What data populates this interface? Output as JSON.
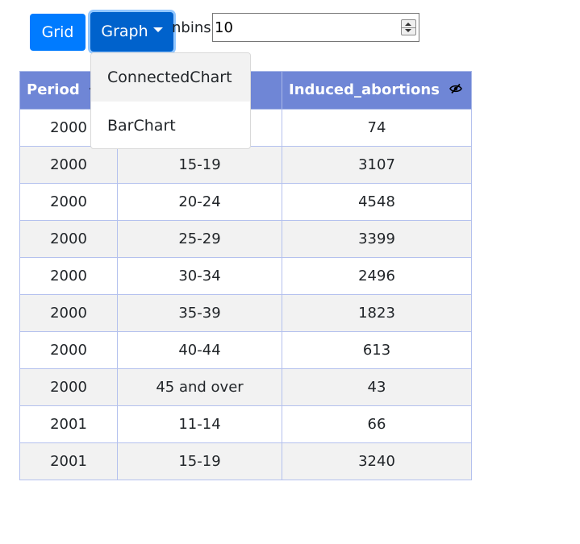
{
  "toolbar": {
    "grid_label": "Grid",
    "graph_label": "Graph",
    "nbins_label": "nbins",
    "nbins_value": "10"
  },
  "dropdown": {
    "items": [
      {
        "label": "ConnectedChart"
      },
      {
        "label": "BarChart"
      }
    ]
  },
  "table": {
    "headers": {
      "period": "Period",
      "induced": "Induced_abortions"
    },
    "rows": [
      {
        "period": "2000",
        "age": "",
        "induced": "74"
      },
      {
        "period": "2000",
        "age": "15-19",
        "induced": "3107"
      },
      {
        "period": "2000",
        "age": "20-24",
        "induced": "4548"
      },
      {
        "period": "2000",
        "age": "25-29",
        "induced": "3399"
      },
      {
        "period": "2000",
        "age": "30-34",
        "induced": "2496"
      },
      {
        "period": "2000",
        "age": "35-39",
        "induced": "1823"
      },
      {
        "period": "2000",
        "age": "40-44",
        "induced": "613"
      },
      {
        "period": "2000",
        "age": "45 and over",
        "induced": "43"
      },
      {
        "period": "2001",
        "age": "11-14",
        "induced": "66"
      },
      {
        "period": "2001",
        "age": "15-19",
        "induced": "3240"
      }
    ]
  },
  "colors": {
    "primary": "#007bff",
    "primary_active": "#0062cc",
    "header_bg": "#6f86d6",
    "row_stripe": "#f2f2f2",
    "border": "#b4c1ee"
  },
  "icons": {
    "header_toggle": "eye-slash-icon",
    "graph_caret": "caret-down-icon"
  }
}
